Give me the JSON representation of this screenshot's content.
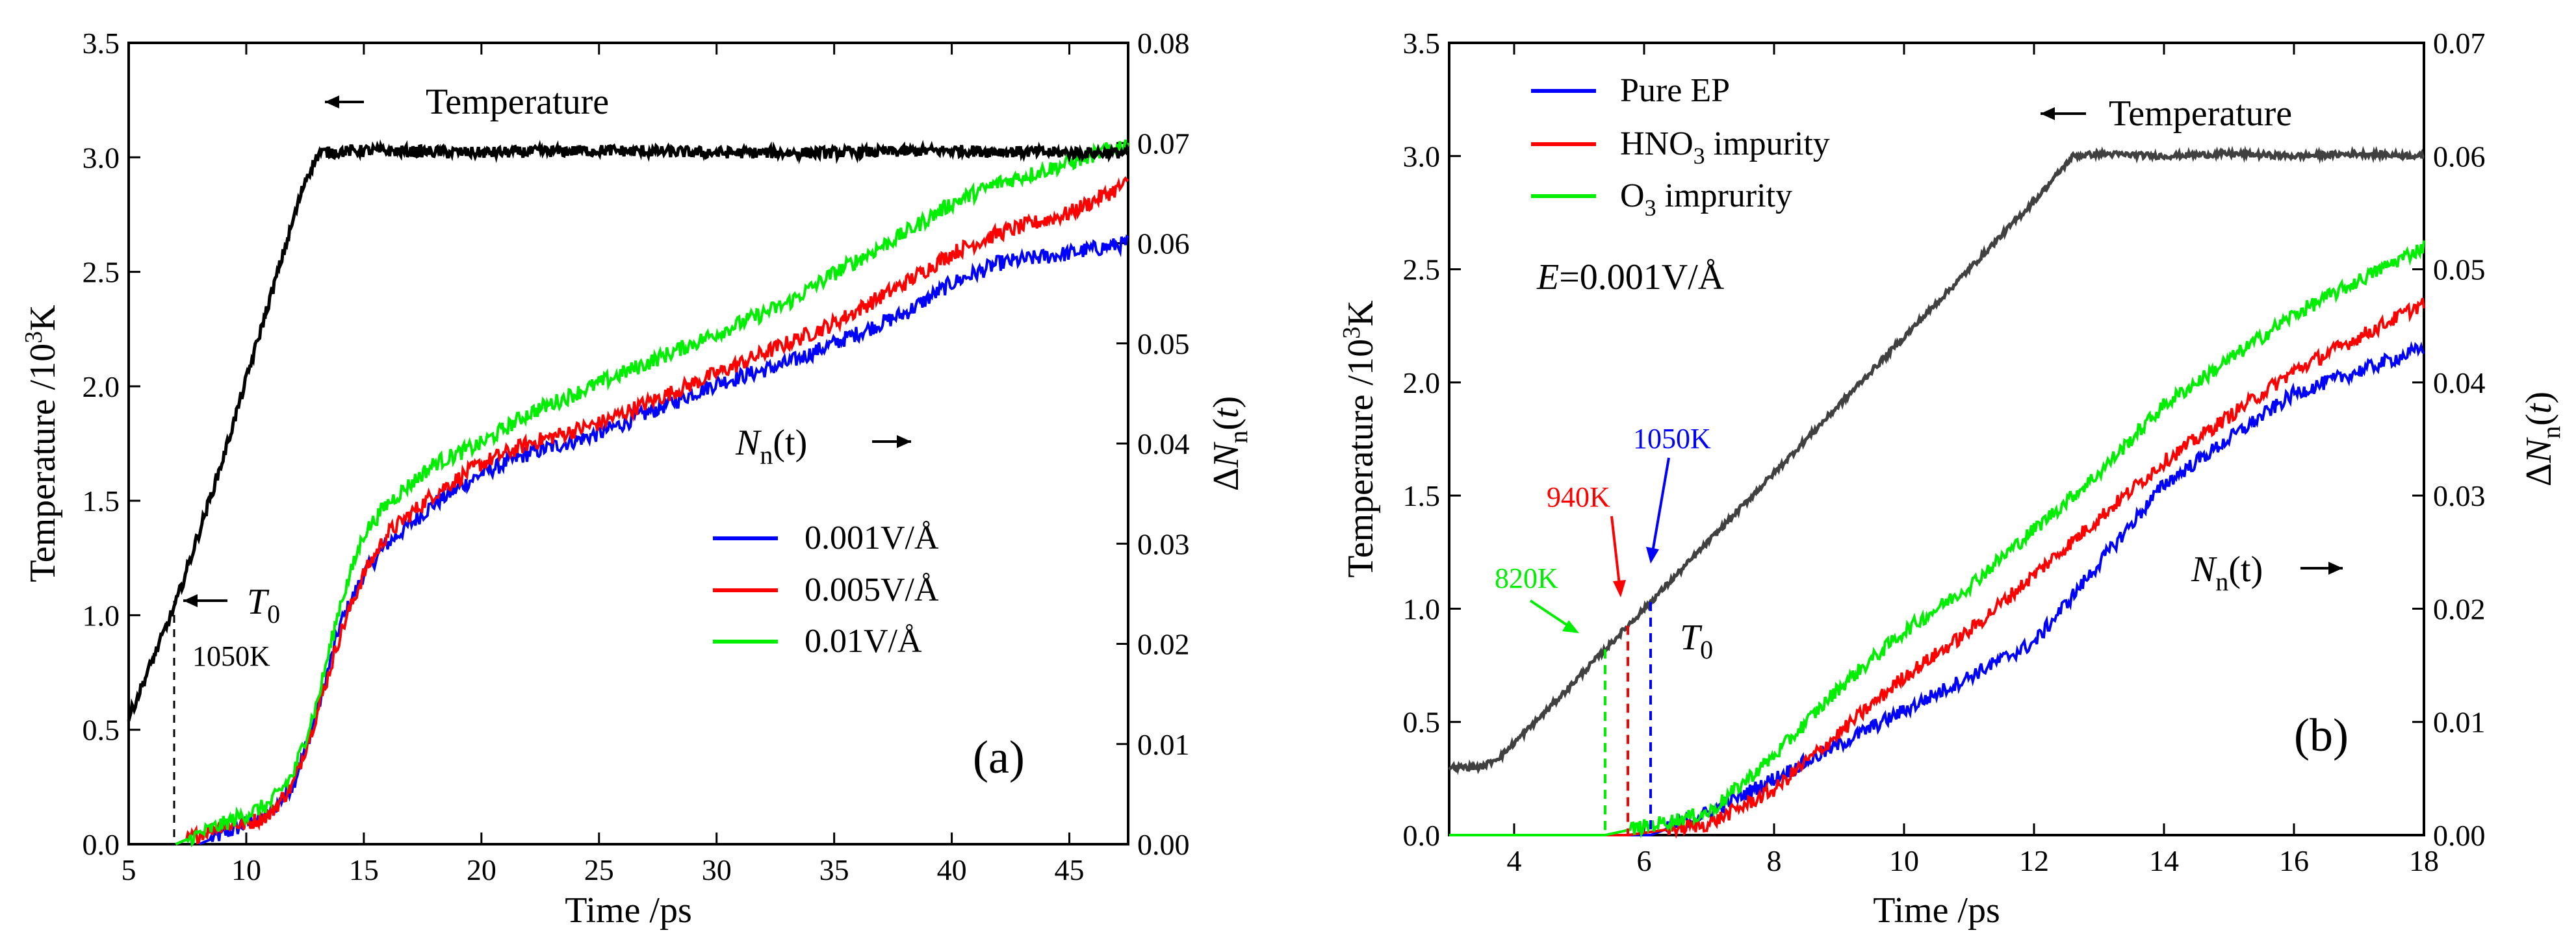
{
  "chart_data": [
    {
      "panel": "(a)",
      "type": "line",
      "xlabel": "Time /ps",
      "ylabel_left": "Temperature /10³K",
      "ylabel_right": "ΔNn(t)",
      "xlim": [
        5,
        47.5
      ],
      "ylim_left": [
        0,
        3.5
      ],
      "ylim_right": [
        0,
        0.08
      ],
      "xticks": [
        5,
        10,
        15,
        20,
        25,
        30,
        35,
        40,
        45
      ],
      "xtick_labels": [
        "5",
        "10",
        "15",
        "20",
        "25",
        "30",
        "35",
        "40",
        "45"
      ],
      "yticks_left": [
        0,
        0.5,
        1.0,
        1.5,
        2.0,
        2.5,
        3.0,
        3.5
      ],
      "ytick_labels_left": [
        "0.0",
        "0.5",
        "1.0",
        "1.5",
        "2.0",
        "2.5",
        "3.0",
        "3.5"
      ],
      "yticks_right": [
        0,
        0.01,
        0.02,
        0.03,
        0.04,
        0.05,
        0.06,
        0.07,
        0.08
      ],
      "ytick_labels_right": [
        "0.00",
        "0.01",
        "0.02",
        "0.03",
        "0.04",
        "0.05",
        "0.06",
        "0.07",
        "0.08"
      ],
      "annotations": {
        "temperature": "Temperature",
        "nn": "N",
        "nn_sub": "n",
        "nn_tail": "(t)",
        "t0": "T",
        "t0_sub": "0",
        "t0_value": "1050K",
        "panel_label": "(a)"
      },
      "temperature_series": {
        "name": "Temperature",
        "color": "#000000",
        "x": [
          5,
          7,
          9,
          11,
          12.5,
          13.1,
          15,
          20,
          25,
          30,
          35,
          40,
          45,
          47.5
        ],
        "y": [
          0.55,
          1.05,
          1.68,
          2.38,
          2.9,
          3.02,
          3.03,
          3.02,
          3.03,
          3.02,
          3.02,
          3.03,
          3.02,
          3.02
        ]
      },
      "series": [
        {
          "name": "0.001V/Å",
          "color": "#0000ff",
          "x": [
            8,
            9,
            10,
            11,
            12,
            13,
            14,
            15,
            16,
            17,
            18,
            20,
            22,
            25,
            27,
            30,
            33,
            35,
            38,
            40,
            42,
            45,
            47.5
          ],
          "y": [
            0.0,
            0.001,
            0.002,
            0.003,
            0.006,
            0.013,
            0.022,
            0.027,
            0.03,
            0.032,
            0.034,
            0.037,
            0.039,
            0.041,
            0.043,
            0.046,
            0.048,
            0.05,
            0.053,
            0.056,
            0.058,
            0.059,
            0.06
          ]
        },
        {
          "name": "0.005V/Å",
          "color": "#ff0000",
          "x": [
            7,
            8,
            9,
            10,
            11,
            12,
            13,
            14,
            15,
            16,
            17,
            18,
            20,
            22,
            25,
            27,
            30,
            33,
            35,
            38,
            40,
            42,
            45,
            47.5
          ],
          "y": [
            0.0,
            0.001,
            0.002,
            0.002,
            0.003,
            0.006,
            0.013,
            0.021,
            0.027,
            0.031,
            0.033,
            0.035,
            0.038,
            0.04,
            0.042,
            0.044,
            0.047,
            0.05,
            0.052,
            0.056,
            0.059,
            0.061,
            0.063,
            0.066
          ]
        },
        {
          "name": "0.01V/Å",
          "color": "#00ee00",
          "x": [
            7,
            8,
            9,
            10,
            11,
            12,
            13,
            14,
            15,
            16,
            17,
            18,
            20,
            22,
            25,
            27,
            30,
            33,
            35,
            38,
            40,
            42,
            45,
            47.5
          ],
          "y": [
            0.0,
            0.001,
            0.002,
            0.003,
            0.004,
            0.007,
            0.014,
            0.024,
            0.031,
            0.034,
            0.036,
            0.038,
            0.04,
            0.043,
            0.046,
            0.048,
            0.051,
            0.054,
            0.057,
            0.061,
            0.064,
            0.066,
            0.068,
            0.07
          ]
        }
      ]
    },
    {
      "panel": "(b)",
      "type": "line",
      "xlabel": "Time /ps",
      "ylabel_left": "Temperature /10³K",
      "ylabel_right": "ΔNn(t)",
      "xlim": [
        3,
        18
      ],
      "ylim_left": [
        0,
        3.5
      ],
      "ylim_right": [
        0,
        0.07
      ],
      "xticks": [
        4,
        6,
        8,
        10,
        12,
        14,
        16,
        18
      ],
      "xtick_labels": [
        "4",
        "6",
        "8",
        "10",
        "12",
        "14",
        "16",
        "18"
      ],
      "yticks_left": [
        0,
        0.5,
        1.0,
        1.5,
        2.0,
        2.5,
        3.0,
        3.5
      ],
      "ytick_labels_left": [
        "0.0",
        "0.5",
        "1.0",
        "1.5",
        "2.0",
        "2.5",
        "3.0",
        "3.5"
      ],
      "yticks_right": [
        0,
        0.01,
        0.02,
        0.03,
        0.04,
        0.05,
        0.06,
        0.07
      ],
      "ytick_labels_right": [
        "0.00",
        "0.01",
        "0.02",
        "0.03",
        "0.04",
        "0.05",
        "0.06",
        "0.07"
      ],
      "annotations": {
        "temperature": "Temperature",
        "field_label": "E",
        "field_value": "=0.001V/Å",
        "nn": "N",
        "nn_sub": "n",
        "nn_tail": "(t)",
        "t0": "T",
        "t0_sub": "0",
        "k1050": "1050K",
        "k940": "940K",
        "k820": "820K",
        "panel_label": "(b)"
      },
      "legend": [
        {
          "label": "Pure EP",
          "color": "#0000ff"
        },
        {
          "label": "HNO",
          "sub": "3",
          "tail": " impurity",
          "color": "#ff0000"
        },
        {
          "label": "O",
          "sub": "3",
          "tail": " imprurity",
          "color": "#00ee00"
        }
      ],
      "temperature_series": {
        "name": "Temperature",
        "color": "#404040",
        "x": [
          3,
          3.5,
          3.8,
          4.5,
          5,
          6,
          7,
          8,
          9,
          10,
          11,
          12,
          12.6,
          13,
          14,
          15,
          16,
          17,
          18
        ],
        "y": [
          0.3,
          0.3,
          0.35,
          0.55,
          0.7,
          1.0,
          1.3,
          1.6,
          1.9,
          2.2,
          2.5,
          2.8,
          3.0,
          3.01,
          3.0,
          3.01,
          3.0,
          3.01,
          3.0
        ]
      },
      "series": [
        {
          "name": "Pure EP",
          "color": "#0000ff",
          "x": [
            3,
            6.1,
            7,
            8,
            9,
            10,
            11,
            12,
            13,
            14,
            15,
            16,
            17,
            18
          ],
          "y": [
            0.0,
            0.0,
            0.002,
            0.005,
            0.008,
            0.011,
            0.014,
            0.017,
            0.024,
            0.031,
            0.035,
            0.039,
            0.041,
            0.043
          ]
        },
        {
          "name": "HNO3 impurity",
          "color": "#ff0000",
          "x": [
            3,
            5.75,
            7,
            8,
            9,
            10,
            11,
            12,
            13,
            14,
            15,
            16,
            17,
            18
          ],
          "y": [
            0.0,
            0.0,
            0.001,
            0.004,
            0.009,
            0.014,
            0.018,
            0.023,
            0.028,
            0.033,
            0.037,
            0.041,
            0.044,
            0.047
          ]
        },
        {
          "name": "O3 imprurity",
          "color": "#00ee00",
          "x": [
            3,
            5.4,
            7,
            8,
            9,
            10,
            11,
            12,
            13,
            14,
            15,
            16,
            17,
            18
          ],
          "y": [
            0.0,
            0.0,
            0.002,
            0.007,
            0.013,
            0.018,
            0.022,
            0.027,
            0.032,
            0.038,
            0.042,
            0.046,
            0.049,
            0.052
          ]
        }
      ],
      "onset_markers": [
        {
          "x": 5.4,
          "color": "#00ee00",
          "label": "820K"
        },
        {
          "x": 5.75,
          "color": "#ff0000",
          "label": "940K"
        },
        {
          "x": 6.1,
          "color": "#0000ff",
          "label": "1050K"
        }
      ]
    }
  ],
  "panel_a_legend": [
    {
      "label": "0.001V/Å",
      "color": "#0000ff"
    },
    {
      "label": "0.005V/Å",
      "color": "#ff0000"
    },
    {
      "label": "0.01V/Å",
      "color": "#00ee00"
    }
  ]
}
